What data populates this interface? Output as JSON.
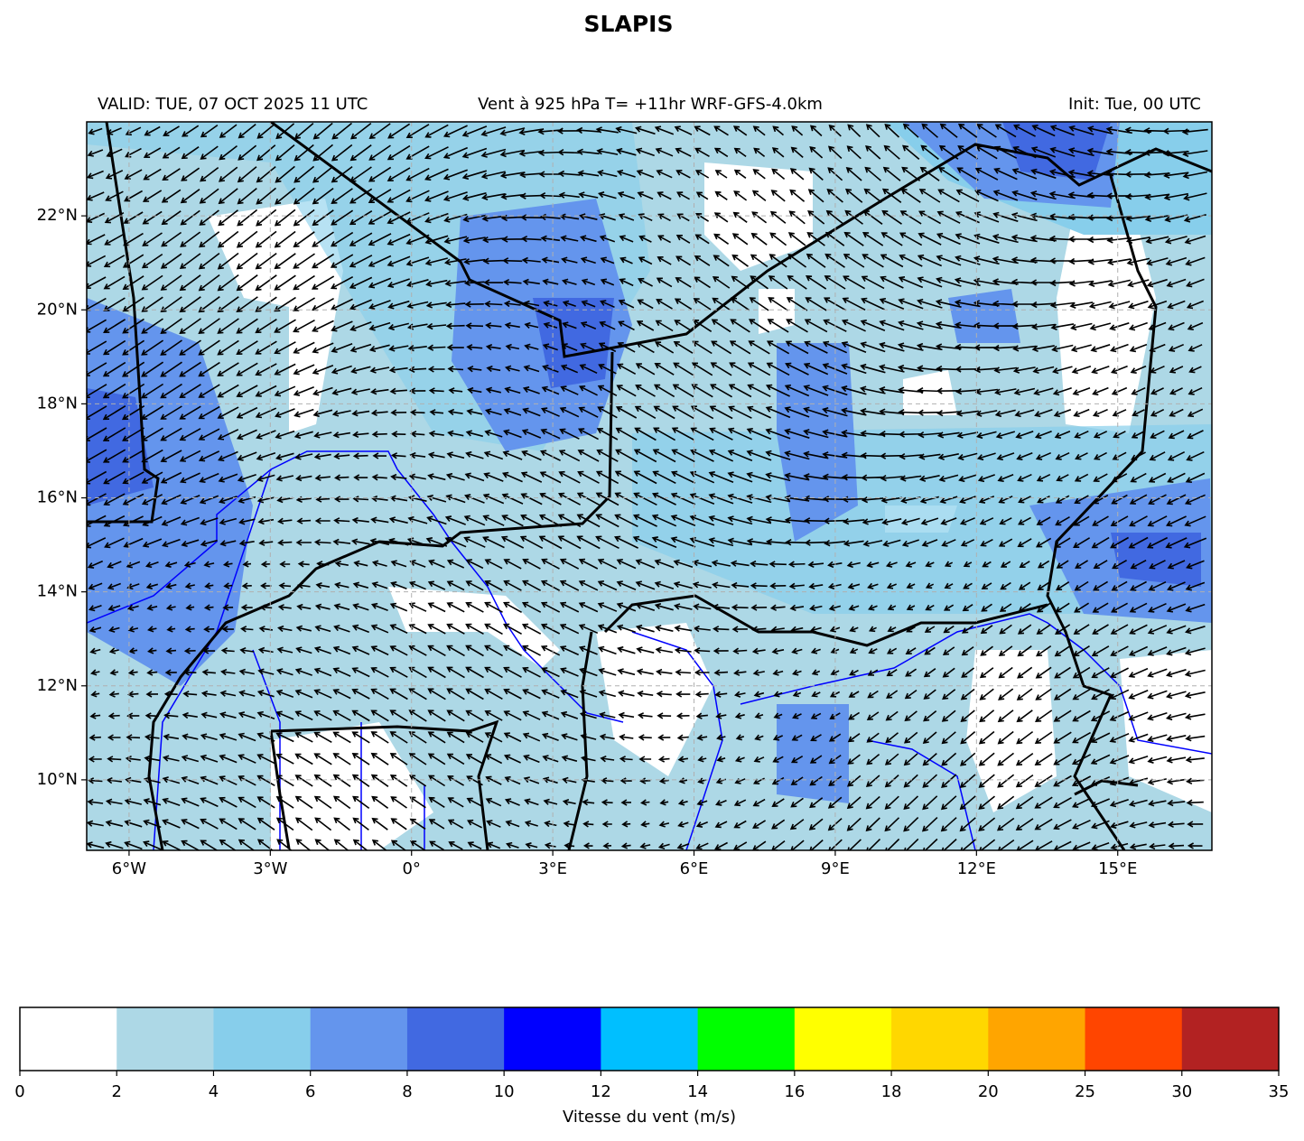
{
  "chart_data": {
    "type": "map",
    "title": "SLAPIS",
    "subtitle_left": "VALID: TUE, 07 OCT 2025 11 UTC",
    "subtitle_center": "Vent à 925 hPa T= +11hr  WRF-GFS-4.0km",
    "subtitle_right": "Init: Tue, 00 UTC",
    "xlim": [
      -6.9,
      17
    ],
    "ylim": [
      8.5,
      24
    ],
    "xticks": [
      {
        "value": -6,
        "label": "6°W"
      },
      {
        "value": -3,
        "label": "3°W"
      },
      {
        "value": 0,
        "label": "0°"
      },
      {
        "value": 3,
        "label": "3°E"
      },
      {
        "value": 6,
        "label": "6°E"
      },
      {
        "value": 9,
        "label": "9°E"
      },
      {
        "value": 12,
        "label": "12°E"
      },
      {
        "value": 15,
        "label": "15°E"
      }
    ],
    "yticks": [
      {
        "value": 10,
        "label": "10°N"
      },
      {
        "value": 12,
        "label": "12°N"
      },
      {
        "value": 14,
        "label": "14°N"
      },
      {
        "value": 16,
        "label": "16°N"
      },
      {
        "value": 18,
        "label": "18°N"
      },
      {
        "value": 20,
        "label": "20°N"
      },
      {
        "value": 22,
        "label": "22°N"
      }
    ],
    "grid": true,
    "colorbar": {
      "label": "Vitesse du vent (m/s)",
      "bounds": [
        0,
        2,
        4,
        6,
        8,
        10,
        12,
        14,
        16,
        18,
        20,
        25,
        30,
        35
      ],
      "colors": [
        "#ffffff",
        "#add8e6",
        "#87ceeb",
        "#6495ed",
        "#4169e1",
        "#0000ff",
        "#00bfff",
        "#00ff00",
        "#ffff00",
        "#ffd700",
        "#ffa500",
        "#ff4500",
        "#b22222"
      ]
    }
  }
}
